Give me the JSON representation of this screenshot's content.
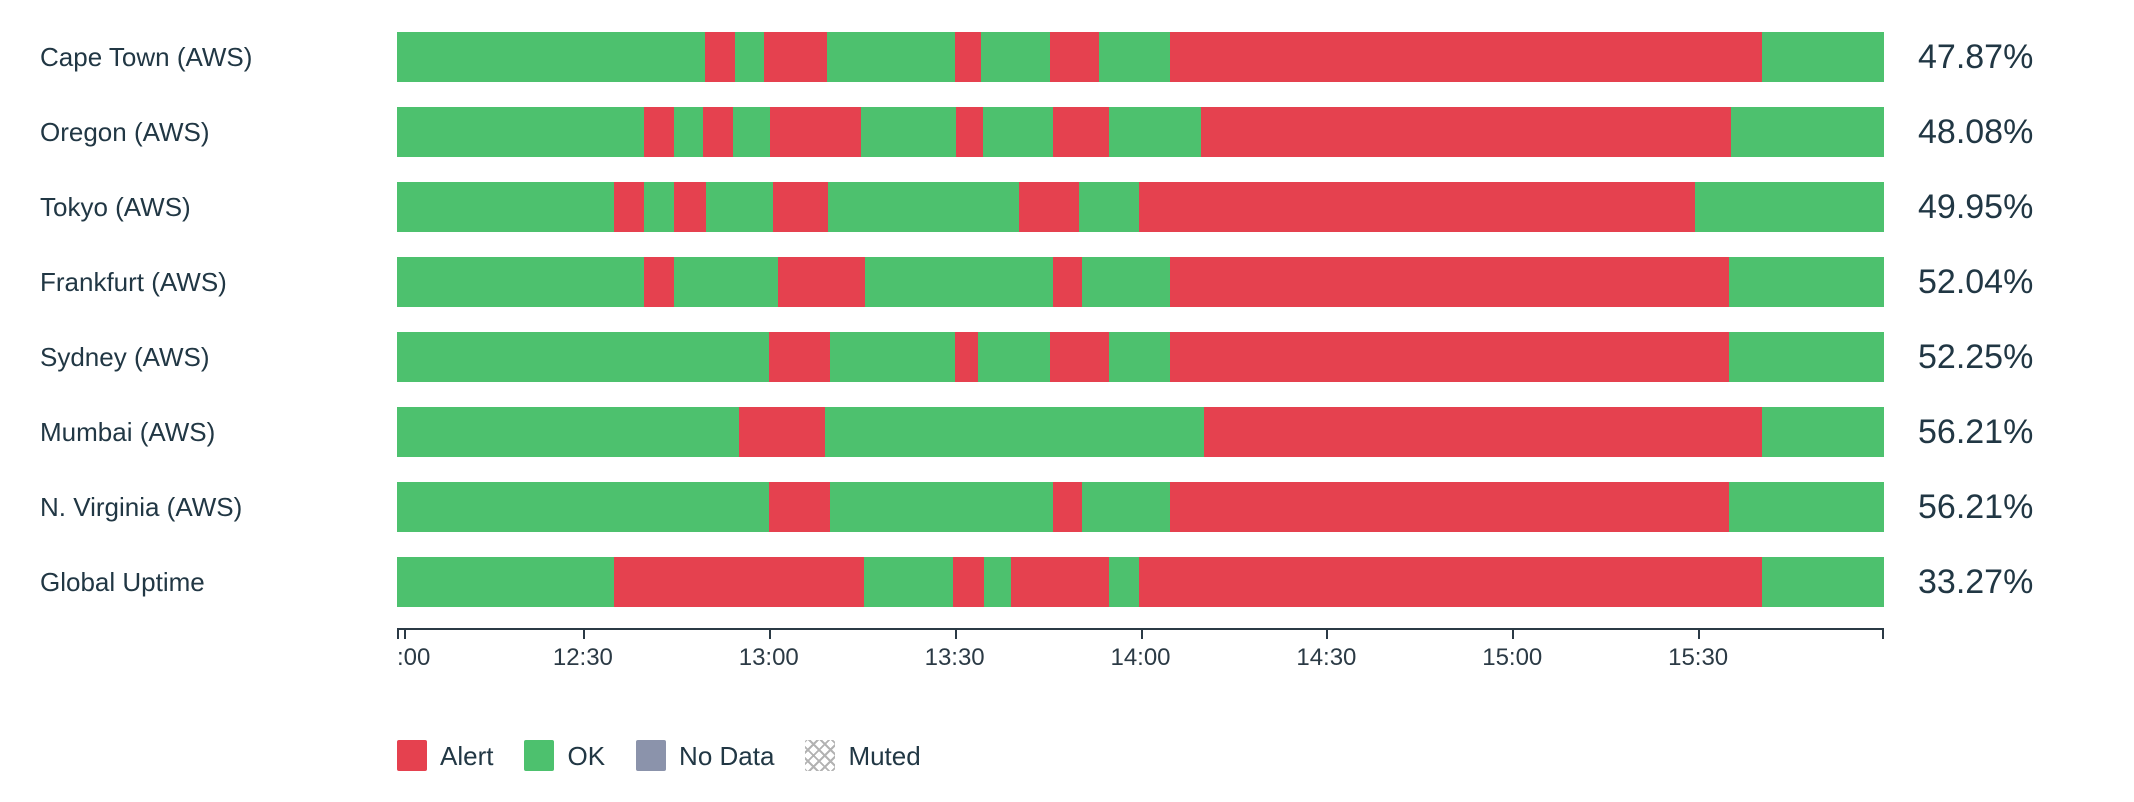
{
  "chart_data": {
    "type": "status-timeline-bar",
    "title": "",
    "time_window": {
      "start": "12:00",
      "end": "16:00"
    },
    "x_ticks": [
      ":00",
      "12:30",
      "13:00",
      "13:30",
      "14:00",
      "14:30",
      "15:00",
      "15:30"
    ],
    "colors": {
      "alert": "#e5414f",
      "ok": "#4dc16e",
      "no_data": "#8b93ab",
      "muted_hatch": "#b3b3b3"
    },
    "rows": [
      {
        "label": "Cape Town (AWS)",
        "uptime": "47.87%",
        "segments": [
          {
            "status": "ok",
            "pct": 20.7
          },
          {
            "status": "alert",
            "pct": 2.0
          },
          {
            "status": "ok",
            "pct": 2.0
          },
          {
            "status": "alert",
            "pct": 4.2
          },
          {
            "status": "ok",
            "pct": 8.6
          },
          {
            "status": "alert",
            "pct": 1.8
          },
          {
            "status": "ok",
            "pct": 4.6
          },
          {
            "status": "alert",
            "pct": 3.3
          },
          {
            "status": "ok",
            "pct": 4.8
          },
          {
            "status": "alert",
            "pct": 39.8
          },
          {
            "status": "ok",
            "pct": 8.2
          }
        ]
      },
      {
        "label": "Oregon (AWS)",
        "uptime": "48.08%",
        "segments": [
          {
            "status": "ok",
            "pct": 16.6
          },
          {
            "status": "alert",
            "pct": 2.0
          },
          {
            "status": "ok",
            "pct": 2.0
          },
          {
            "status": "alert",
            "pct": 2.0
          },
          {
            "status": "ok",
            "pct": 2.5
          },
          {
            "status": "alert",
            "pct": 6.1
          },
          {
            "status": "ok",
            "pct": 6.4
          },
          {
            "status": "alert",
            "pct": 1.8
          },
          {
            "status": "ok",
            "pct": 4.7
          },
          {
            "status": "alert",
            "pct": 3.8
          },
          {
            "status": "ok",
            "pct": 6.2
          },
          {
            "status": "alert",
            "pct": 35.6
          },
          {
            "status": "ok",
            "pct": 10.3
          }
        ]
      },
      {
        "label": "Tokyo (AWS)",
        "uptime": "49.95%",
        "segments": [
          {
            "status": "ok",
            "pct": 14.6
          },
          {
            "status": "alert",
            "pct": 2.0
          },
          {
            "status": "ok",
            "pct": 2.0
          },
          {
            "status": "alert",
            "pct": 2.2
          },
          {
            "status": "ok",
            "pct": 4.5
          },
          {
            "status": "alert",
            "pct": 3.7
          },
          {
            "status": "ok",
            "pct": 12.8
          },
          {
            "status": "alert",
            "pct": 4.1
          },
          {
            "status": "ok",
            "pct": 4.0
          },
          {
            "status": "alert",
            "pct": 37.4
          },
          {
            "status": "ok",
            "pct": 12.7
          }
        ]
      },
      {
        "label": "Frankfurt (AWS)",
        "uptime": "52.04%",
        "segments": [
          {
            "status": "ok",
            "pct": 16.6
          },
          {
            "status": "alert",
            "pct": 2.0
          },
          {
            "status": "ok",
            "pct": 7.0
          },
          {
            "status": "alert",
            "pct": 5.9
          },
          {
            "status": "ok",
            "pct": 12.6
          },
          {
            "status": "alert",
            "pct": 2.0
          },
          {
            "status": "ok",
            "pct": 5.9
          },
          {
            "status": "alert",
            "pct": 37.6
          },
          {
            "status": "ok",
            "pct": 10.4
          }
        ]
      },
      {
        "label": "Sydney (AWS)",
        "uptime": "52.25%",
        "segments": [
          {
            "status": "ok",
            "pct": 25.0
          },
          {
            "status": "alert",
            "pct": 4.1
          },
          {
            "status": "ok",
            "pct": 8.4
          },
          {
            "status": "alert",
            "pct": 1.6
          },
          {
            "status": "ok",
            "pct": 4.8
          },
          {
            "status": "alert",
            "pct": 4.0
          },
          {
            "status": "ok",
            "pct": 4.1
          },
          {
            "status": "alert",
            "pct": 37.6
          },
          {
            "status": "ok",
            "pct": 10.4
          }
        ]
      },
      {
        "label": "Mumbai (AWS)",
        "uptime": "56.21%",
        "segments": [
          {
            "status": "ok",
            "pct": 23.0
          },
          {
            "status": "alert",
            "pct": 5.8
          },
          {
            "status": "ok",
            "pct": 25.5
          },
          {
            "status": "alert",
            "pct": 37.5
          },
          {
            "status": "ok",
            "pct": 8.2
          }
        ]
      },
      {
        "label": "N. Virginia (AWS)",
        "uptime": "56.21%",
        "segments": [
          {
            "status": "ok",
            "pct": 25.0
          },
          {
            "status": "alert",
            "pct": 4.1
          },
          {
            "status": "ok",
            "pct": 15.0
          },
          {
            "status": "alert",
            "pct": 2.0
          },
          {
            "status": "ok",
            "pct": 5.9
          },
          {
            "status": "alert",
            "pct": 37.6
          },
          {
            "status": "ok",
            "pct": 10.4
          }
        ]
      },
      {
        "label": "Global Uptime",
        "uptime": "33.27%",
        "segments": [
          {
            "status": "ok",
            "pct": 14.6
          },
          {
            "status": "alert",
            "pct": 16.8
          },
          {
            "status": "ok",
            "pct": 6.0
          },
          {
            "status": "alert",
            "pct": 2.1
          },
          {
            "status": "ok",
            "pct": 1.8
          },
          {
            "status": "alert",
            "pct": 6.6
          },
          {
            "status": "ok",
            "pct": 2.0
          },
          {
            "status": "alert",
            "pct": 41.9
          },
          {
            "status": "ok",
            "pct": 8.2
          }
        ]
      }
    ],
    "legend": [
      {
        "label": "Alert",
        "swatch": "solid",
        "color": "#e5414f"
      },
      {
        "label": "OK",
        "swatch": "solid",
        "color": "#4dc16e"
      },
      {
        "label": "No Data",
        "swatch": "solid",
        "color": "#8b93ab"
      },
      {
        "label": "Muted",
        "swatch": "crosshatch",
        "color": "#b3b3b3"
      }
    ]
  }
}
